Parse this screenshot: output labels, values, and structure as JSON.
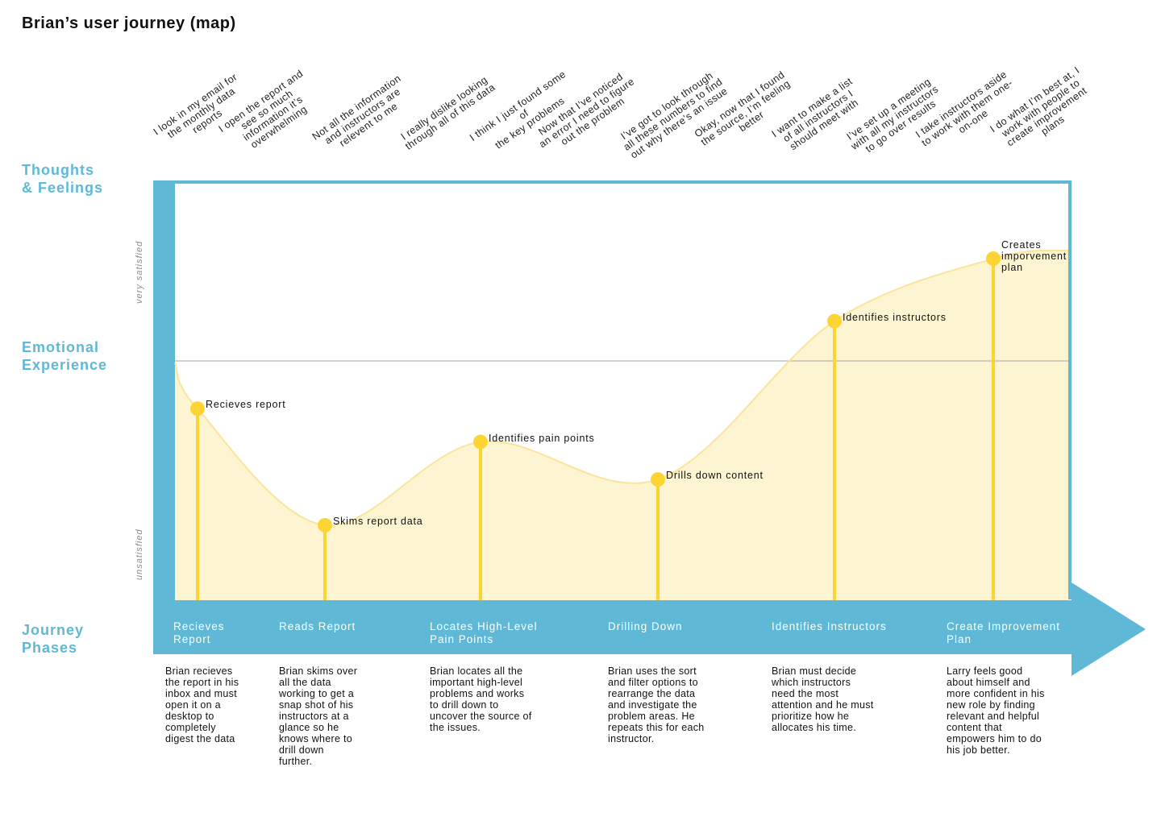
{
  "title": "Brian’s user journey (map)",
  "sections": {
    "thoughts": [
      "Thoughts",
      "& Feelings"
    ],
    "emotional": [
      "Emotional",
      "Experience"
    ],
    "phases": [
      "Journey",
      "Phases"
    ]
  },
  "axis": {
    "top": "very satisfied",
    "bottom": "unsatisfied"
  },
  "thoughts": [
    [
      "I look in my email for",
      "the monthly data",
      "reports"
    ],
    [
      "I open the report and",
      "see so much",
      "information it’s",
      "overwhelming"
    ],
    [
      "Not all the information",
      "and instructors are",
      "relevent to me"
    ],
    [
      "I really dislike looking",
      "through all of this data"
    ],
    [
      "I think I just found some of",
      "the key problems"
    ],
    [
      "Now that I’ve noticed",
      "an error I need to figure",
      "out the problem"
    ],
    [
      "I’ve got to look through",
      "all these numbers to find",
      "out why there’s an issue"
    ],
    [
      "Okay, now that  I found",
      "the source, I’m feeling",
      "better"
    ],
    [
      "I want to make a list",
      "of all instructors I",
      "should meet with"
    ],
    [
      "I’ve set up a meeting",
      "with all my instructors",
      "to go over results"
    ],
    [
      "I take instructors aside",
      "to work with them one-",
      "on-one"
    ],
    [
      "I do what I’m best at, I",
      "work with people to",
      "create improvement",
      "plans"
    ]
  ],
  "points": [
    {
      "label": "Recieves report",
      "value": 0.46
    },
    {
      "label": "Skims report data",
      "value": 0.18
    },
    {
      "label": "Identifies pain points",
      "value": 0.38
    },
    {
      "label": "Drills down content",
      "value": 0.29
    },
    {
      "label": "Identifies instructors",
      "value": 0.67
    },
    {
      "label": "Creates\nimporvement\nplan",
      "value": 0.82
    }
  ],
  "phases": [
    {
      "name": "Recieves\nReport",
      "desc": "Brian recieves\nthe report in his\ninbox and must\nopen it on a\ndesktop to\ncompletely\ndigest the data"
    },
    {
      "name": "Reads Report",
      "desc": "Brian skims over\nall the data\nworking to get a\nsnap shot of his\ninstructors at a\nglance so he\nknows where to\ndrill down\nfurther."
    },
    {
      "name": "Locates High-Level\nPain Points",
      "desc": "Brian locates all the\nimportant high-level\nproblems and works\nto drill down to\nuncover the source of\nthe issues."
    },
    {
      "name": "Drilling Down",
      "desc": "Brian uses the sort\nand filter options to\nrearrange the data\nand investigate the\nproblem areas. He\nrepeats this for each\ninstructor."
    },
    {
      "name": "Identifies Instructors",
      "desc": "Brian must decide\nwhich instructors\nneed the most\nattention and he must\nprioritize how he\nallocates his time."
    },
    {
      "name": "Create Improvement\nPlan",
      "desc": "Larry feels good\nabout himself and\nmore confident in his\nnew role by finding\nrelevant and helpful\ncontent that\nempowers him to do\nhis job better."
    }
  ],
  "colors": {
    "accent": "#5fb8d6",
    "marker": "#fcd534",
    "fill": "#fdf5d2",
    "curve": "#fbe49a"
  }
}
